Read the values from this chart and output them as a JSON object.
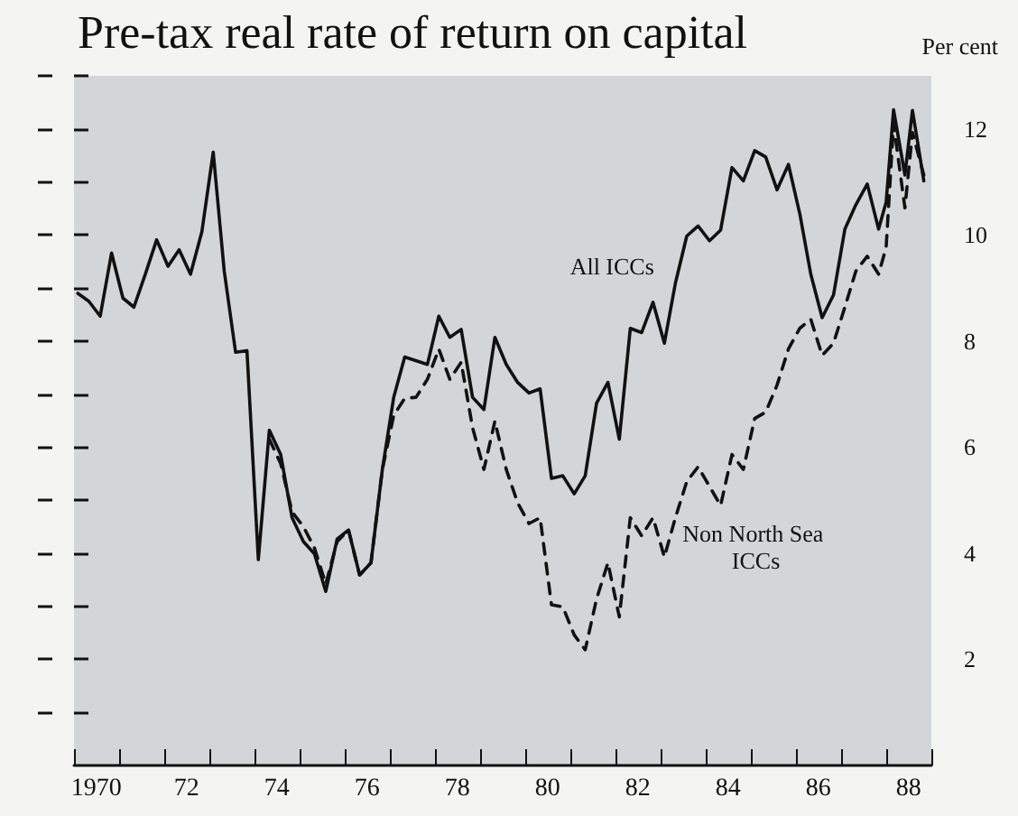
{
  "chart_data": {
    "type": "line",
    "title": "Pre-tax real rate of return on capital",
    "ylabel": "Per cent",
    "xlim": [
      "1970",
      "1989"
    ],
    "xticks": [
      {
        "value": "1970",
        "label": null
      },
      {
        "value": "1970-07",
        "label": "1970"
      },
      {
        "value": "1971",
        "label": null
      },
      {
        "value": "1972",
        "label": null
      },
      {
        "value": "1972-07",
        "label": "72"
      },
      {
        "value": "1973",
        "label": null
      },
      {
        "value": "1974",
        "label": null
      },
      {
        "value": "1974-07",
        "label": "74"
      },
      {
        "value": "1975",
        "label": null
      },
      {
        "value": "1976",
        "label": null
      },
      {
        "value": "1976-07",
        "label": "76"
      },
      {
        "value": "1977",
        "label": null
      },
      {
        "value": "1978",
        "label": null
      },
      {
        "value": "1978-07",
        "label": "78"
      },
      {
        "value": "1979",
        "label": null
      },
      {
        "value": "1980",
        "label": null
      },
      {
        "value": "1980-07",
        "label": "80"
      },
      {
        "value": "1981",
        "label": null
      },
      {
        "value": "1982",
        "label": null
      },
      {
        "value": "1982-07",
        "label": "82"
      },
      {
        "value": "1983",
        "label": null
      },
      {
        "value": "1984",
        "label": null
      },
      {
        "value": "1984-07",
        "label": "84"
      },
      {
        "value": "1985",
        "label": null
      },
      {
        "value": "1986",
        "label": null
      },
      {
        "value": "1986-07",
        "label": "86"
      },
      {
        "value": "1987",
        "label": null
      },
      {
        "value": "1988",
        "label": null
      },
      {
        "value": "1988-07",
        "label": "88"
      },
      {
        "value": "1989",
        "label": null
      }
    ],
    "ylim": [
      0,
      13
    ],
    "yticks": [
      {
        "value": 1,
        "label": null
      },
      2,
      {
        "value": 3,
        "label": null
      },
      4,
      {
        "value": 5,
        "label": null
      },
      6,
      {
        "value": 7,
        "label": null
      },
      8,
      {
        "value": 9,
        "label": null
      },
      10,
      {
        "value": 11,
        "label": null
      },
      12,
      {
        "value": 13,
        "label": null
      }
    ],
    "grid": false,
    "legend": false,
    "marker": "none",
    "series": [
      {
        "name": "All ICCs",
        "color": "#111111",
        "line_style": "solid",
        "x": [
          "1970-02",
          "1970-05",
          "1970-08",
          "1970-11",
          "1971-02",
          "1971-05",
          "1971-08",
          "1971-11",
          "1972-02",
          "1972-05",
          "1972-08",
          "1972-11",
          "1973-02",
          "1973-05",
          "1973-08",
          "1973-11",
          "1974-02",
          "1974-05",
          "1974-08",
          "1974-11",
          "1975-02",
          "1975-05",
          "1975-08",
          "1975-11",
          "1976-02",
          "1976-05",
          "1976-08",
          "1976-11",
          "1977-02",
          "1977-05",
          "1977-11",
          "1978-02",
          "1978-05",
          "1978-08",
          "1978-11",
          "1979-02",
          "1979-05",
          "1979-08",
          "1979-11",
          "1980-02",
          "1980-05",
          "1980-08",
          "1980-11",
          "1981-02",
          "1981-05",
          "1981-08",
          "1981-11",
          "1982-02",
          "1982-05",
          "1982-08",
          "1982-11",
          "1983-02",
          "1983-05",
          "1983-08",
          "1983-11",
          "1984-02",
          "1984-05",
          "1984-08",
          "1984-11",
          "1985-02",
          "1985-05",
          "1985-08",
          "1985-11",
          "1986-02",
          "1986-05",
          "1986-08",
          "1986-11",
          "1987-02",
          "1987-05",
          "1987-08",
          "1987-11",
          "1988-01",
          "1988-03",
          "1988-06",
          "1988-08",
          "1988-11"
        ],
        "values": [
          8.9,
          8.75,
          8.47,
          9.66,
          8.81,
          8.64,
          9.26,
          9.91,
          9.41,
          9.72,
          9.26,
          10.06,
          11.56,
          9.32,
          7.79,
          7.82,
          3.88,
          6.32,
          5.86,
          4.67,
          4.22,
          3.99,
          3.28,
          4.27,
          4.44,
          3.59,
          3.82,
          5.58,
          6.94,
          7.7,
          7.56,
          8.47,
          8.07,
          8.22,
          6.94,
          6.71,
          8.07,
          7.56,
          7.22,
          7.02,
          7.1,
          5.41,
          5.46,
          5.12,
          5.46,
          6.83,
          7.22,
          6.15,
          8.24,
          8.16,
          8.73,
          7.96,
          9.09,
          9.98,
          10.17,
          9.89,
          10.09,
          11.27,
          11.02,
          11.59,
          11.47,
          10.85,
          11.33,
          10.4,
          9.26,
          8.44,
          8.87,
          10.11,
          10.57,
          10.96,
          10.11,
          10.62,
          12.36,
          11.13,
          12.35,
          11.02
        ]
      },
      {
        "name": "Non North Sea ICCs",
        "color": "#111111",
        "line_style": "dashed",
        "x": [
          "1974-05",
          "1974-08",
          "1974-11",
          "1975-02",
          "1975-05",
          "1975-08",
          "1975-11",
          "1976-02",
          "1976-05",
          "1976-08",
          "1976-11",
          "1977-02",
          "1977-05",
          "1977-08",
          "1977-11",
          "1978-02",
          "1978-05",
          "1978-08",
          "1978-11",
          "1979-02",
          "1979-05",
          "1979-08",
          "1979-11",
          "1980-02",
          "1980-05",
          "1980-08",
          "1980-11",
          "1981-02",
          "1981-05",
          "1981-08",
          "1981-11",
          "1982-02",
          "1982-05",
          "1982-08",
          "1982-11",
          "1983-02",
          "1983-05",
          "1983-08",
          "1983-11",
          "1984-05",
          "1984-08",
          "1984-11",
          "1985-02",
          "1985-05",
          "1985-08",
          "1985-11",
          "1986-02",
          "1986-05",
          "1986-08",
          "1986-11",
          "1987-02",
          "1987-05",
          "1987-08",
          "1987-11",
          "1988-01",
          "1988-03",
          "1988-06",
          "1988-08",
          "1988-11"
        ],
        "values": [
          6.15,
          5.69,
          4.78,
          4.5,
          4.1,
          3.42,
          4.22,
          4.44,
          3.59,
          3.82,
          5.58,
          6.6,
          6.92,
          6.94,
          7.28,
          7.85,
          7.28,
          7.6,
          6.37,
          5.58,
          6.49,
          5.58,
          4.95,
          4.56,
          4.67,
          3.03,
          2.99,
          2.46,
          2.18,
          3.14,
          3.82,
          2.8,
          4.67,
          4.33,
          4.67,
          3.93,
          4.67,
          5.35,
          5.63,
          4.9,
          5.86,
          5.58,
          6.54,
          6.66,
          7.17,
          7.85,
          8.24,
          8.41,
          7.73,
          7.96,
          8.64,
          9.32,
          9.6,
          9.26,
          9.77,
          12.1,
          10.51,
          11.93,
          11.13
        ]
      }
    ]
  }
}
